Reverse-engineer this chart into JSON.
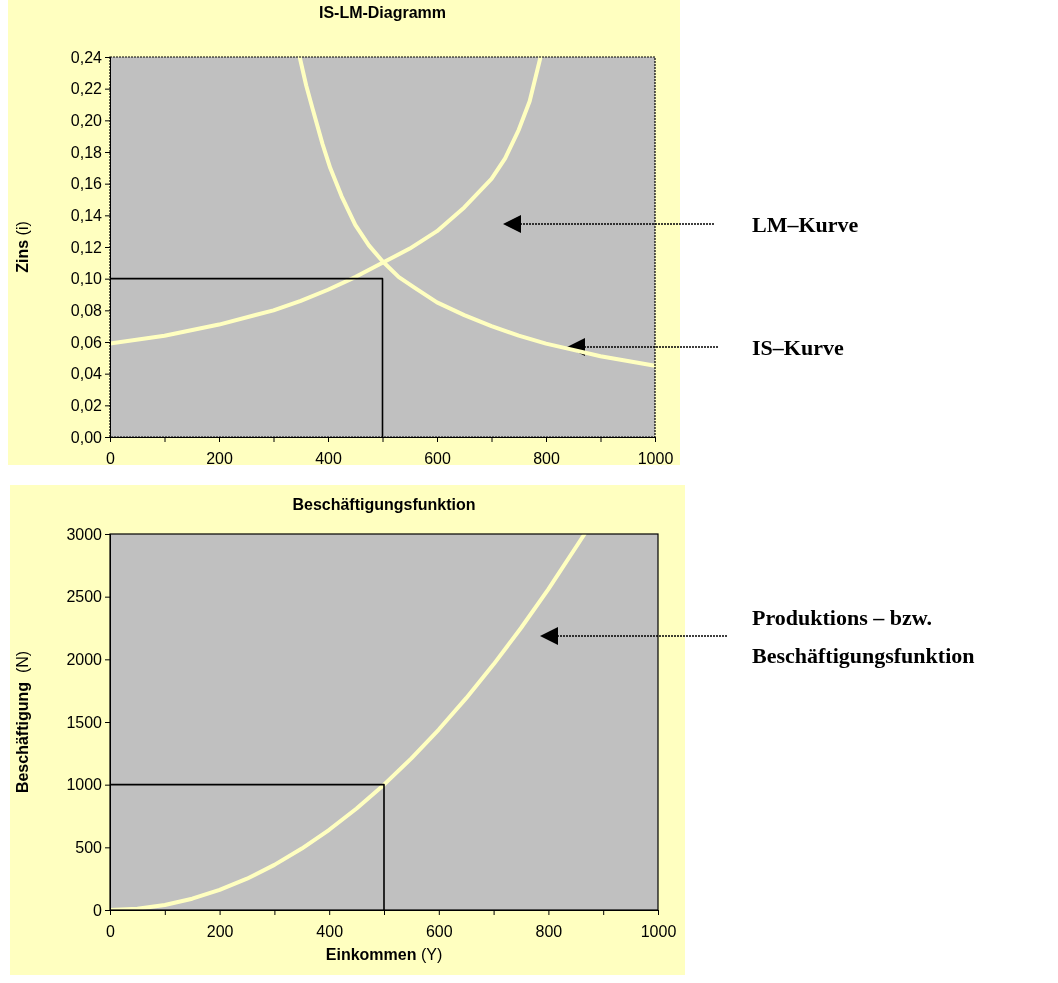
{
  "chart_data": [
    {
      "type": "line",
      "title": "IS-LM-Diagramm",
      "ylabel": "Zins (i)",
      "xlim": [
        0,
        1000
      ],
      "ylim": [
        0,
        0.24
      ],
      "xticks": [
        0,
        {
          "value": 100,
          "label": null
        },
        200,
        {
          "value": 300,
          "label": null
        },
        400,
        {
          "value": 500,
          "label": null
        },
        600,
        {
          "value": 700,
          "label": null
        },
        800,
        {
          "value": 900,
          "label": null
        },
        1000
      ],
      "yticks": [
        {
          "value": 0,
          "label": "0,00"
        },
        {
          "value": 0.02,
          "label": "0,02"
        },
        {
          "value": 0.04,
          "label": "0,04"
        },
        {
          "value": 0.06,
          "label": "0,06"
        },
        {
          "value": 0.08,
          "label": "0,08"
        },
        {
          "value": 0.1,
          "label": "0,10"
        },
        {
          "value": 0.12,
          "label": "0,12"
        },
        {
          "value": 0.14,
          "label": "0,14"
        },
        {
          "value": 0.16,
          "label": "0,16"
        },
        {
          "value": 0.18,
          "label": "0,18"
        },
        {
          "value": 0.2,
          "label": "0,20"
        },
        {
          "value": 0.22,
          "label": "0,22"
        },
        {
          "value": 0.24,
          "label": "0,24"
        }
      ],
      "marker": "none",
      "grid": false,
      "series": [
        {
          "color": "#ffffc0",
          "x": [
            348,
            360,
            372,
            390,
            404,
            425,
            450,
            475,
            500,
            530,
            560,
            600,
            650,
            700,
            750,
            800,
            850,
            900,
            950,
            1000
          ],
          "values": [
            0.24,
            0.222,
            0.207,
            0.185,
            0.17,
            0.152,
            0.134,
            0.121,
            0.111,
            0.101,
            0.094,
            0.085,
            0.077,
            0.07,
            0.064,
            0.059,
            0.055,
            0.051,
            0.048,
            0.045
          ]
        },
        {
          "color": "#ffffc0",
          "x": [
            0,
            100,
            200,
            300,
            350,
            400,
            450,
            500,
            550,
            600,
            650,
            700,
            725,
            750,
            770,
            790
          ],
          "values": [
            0.059,
            0.064,
            0.071,
            0.08,
            0.086,
            0.093,
            0.101,
            0.11,
            0.119,
            0.13,
            0.145,
            0.163,
            0.176,
            0.194,
            0.212,
            0.24
          ]
        },
        {
          "color": "#000000",
          "x": [
            0,
            500,
            500
          ],
          "values": [
            0.1,
            0.1,
            0
          ]
        }
      ],
      "annotations": [
        "LM–Kurve",
        "IS–Kurve"
      ]
    },
    {
      "type": "line",
      "title": "Beschäftigungsfunktion",
      "xlabel": "Einkommen (Y)",
      "ylabel": "Beschäftigung  (N)",
      "xlim": [
        0,
        1000
      ],
      "ylim": [
        0,
        3000
      ],
      "xticks": [
        0,
        {
          "value": 100,
          "label": null
        },
        200,
        {
          "value": 300,
          "label": null
        },
        400,
        {
          "value": 500,
          "label": null
        },
        600,
        {
          "value": 700,
          "label": null
        },
        800,
        {
          "value": 900,
          "label": null
        },
        1000
      ],
      "yticks": [
        0,
        500,
        1000,
        1500,
        2000,
        2500,
        3000
      ],
      "marker": "none",
      "grid": false,
      "series": [
        {
          "color": "#ffffc0",
          "x": [
            0,
            50,
            100,
            150,
            200,
            250,
            300,
            350,
            400,
            450,
            500,
            550,
            600,
            650,
            700,
            750,
            800,
            866
          ],
          "values": [
            0,
            10,
            40,
            90,
            160,
            250,
            360,
            490,
            640,
            810,
            1000,
            1210,
            1440,
            1690,
            1960,
            2250,
            2560,
            3000
          ]
        },
        {
          "color": "#000000",
          "x": [
            0,
            500,
            500
          ],
          "values": [
            1000,
            1000,
            0
          ]
        }
      ],
      "annotations": [
        "Produktions – bzw. Beschäftigungsfunktion"
      ]
    }
  ]
}
